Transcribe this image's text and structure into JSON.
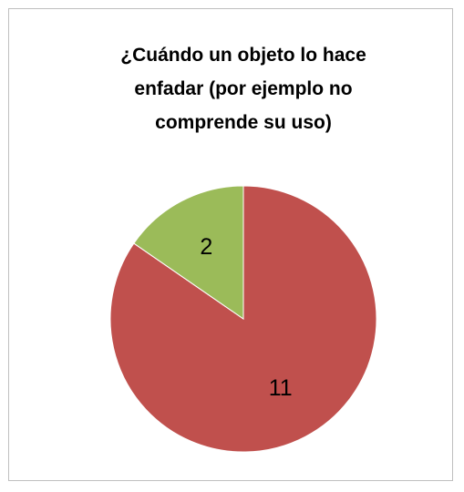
{
  "chart_data": {
    "type": "pie",
    "title": "¿Cuándo un objeto lo hace enfadar (por ejemplo no comprende su uso)",
    "values": [
      11,
      2
    ],
    "colors": [
      "#c0504d",
      "#9bbb59"
    ]
  }
}
